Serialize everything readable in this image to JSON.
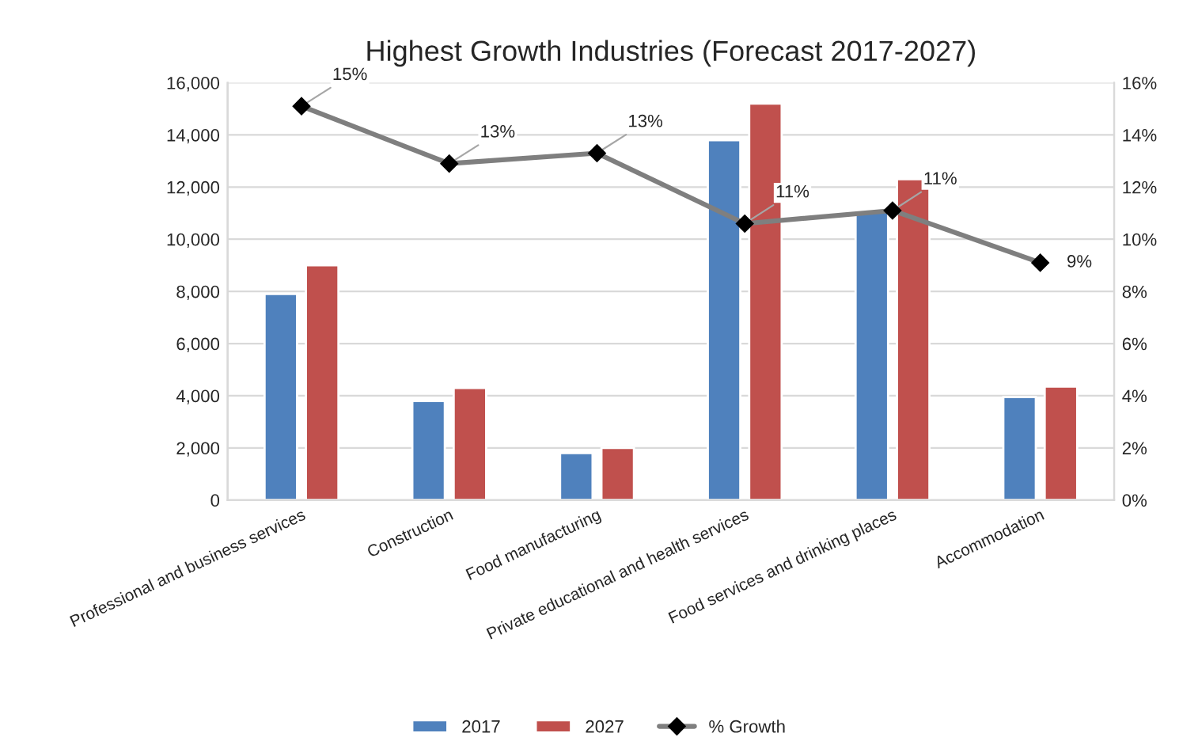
{
  "chart_data": {
    "type": "bar",
    "title": "Highest Growth Industries (Forecast 2017-2027)",
    "categories": [
      "Professional and business services",
      "Construction",
      "Food manufacturing",
      "Private educational and health services",
      "Food services and drinking places",
      "Accommodation"
    ],
    "series": [
      {
        "name": "2017",
        "color": "#4f81bd",
        "values": [
          7900,
          3800,
          1800,
          13800,
          11100,
          3950
        ]
      },
      {
        "name": "2027",
        "color": "#c0504d",
        "values": [
          9000,
          4300,
          2000,
          15200,
          12300,
          4350
        ]
      },
      {
        "name": "% Growth",
        "type": "line",
        "axis": "y2",
        "color": "#7f7f7f",
        "marker": "diamond",
        "values": [
          15.1,
          12.9,
          13.3,
          10.6,
          11.1,
          9.1
        ],
        "value_labels": [
          "15%",
          "13%",
          "13%",
          "11%",
          "11%",
          "9%"
        ]
      }
    ],
    "ylim": [
      0,
      16000
    ],
    "yticks": [
      {
        "value": 0,
        "label": "0"
      },
      {
        "value": 2000,
        "label": "2,000"
      },
      {
        "value": 4000,
        "label": "4,000"
      },
      {
        "value": 6000,
        "label": "6,000"
      },
      {
        "value": 8000,
        "label": "8,000"
      },
      {
        "value": 10000,
        "label": "10,000"
      },
      {
        "value": 12000,
        "label": "12,000"
      },
      {
        "value": 14000,
        "label": "14,000"
      },
      {
        "value": 16000,
        "label": "16,000"
      }
    ],
    "y2lim": [
      0,
      16
    ],
    "y2ticks": [
      {
        "value": 0,
        "label": "0%"
      },
      {
        "value": 2,
        "label": "2%"
      },
      {
        "value": 4,
        "label": "4%"
      },
      {
        "value": 6,
        "label": "6%"
      },
      {
        "value": 8,
        "label": "8%"
      },
      {
        "value": 10,
        "label": "10%"
      },
      {
        "value": 12,
        "label": "12%"
      },
      {
        "value": 14,
        "label": "14%"
      },
      {
        "value": 16,
        "label": "16%"
      }
    ],
    "grid": "y",
    "legend": "bottom"
  }
}
